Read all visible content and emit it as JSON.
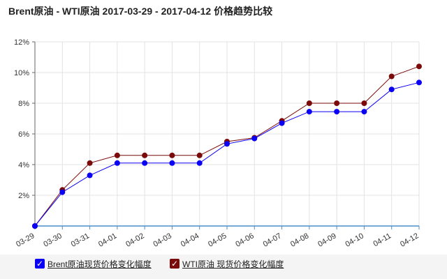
{
  "title": "Brent原油 - WTI原油 2017-03-29 - 2017-04-12 价格趋势比较",
  "chart_data": {
    "type": "line",
    "categories": [
      "03-29",
      "03-30",
      "03-31",
      "04-01",
      "04-02",
      "04-03",
      "04-04",
      "04-05",
      "04-06",
      "04-07",
      "04-08",
      "04-09",
      "04-10",
      "04-11",
      "04-12"
    ],
    "y_ticks": [
      "2%",
      "4%",
      "6%",
      "8%",
      "10%",
      "12%"
    ],
    "ylim": [
      0,
      12
    ],
    "grid": true,
    "legend_position": "bottom-left",
    "series": [
      {
        "name": "Brent原油现货价格变化幅度",
        "color": "#0a00f5",
        "values": [
          0,
          2.2,
          3.3,
          4.1,
          4.1,
          4.1,
          4.1,
          5.35,
          5.7,
          6.7,
          7.45,
          7.45,
          7.45,
          8.9,
          9.35
        ]
      },
      {
        "name": "WTI原油 现货价格变化幅度",
        "color": "#7b0a0a",
        "values": [
          0,
          2.35,
          4.1,
          4.6,
          4.6,
          4.6,
          4.6,
          5.5,
          5.75,
          6.85,
          8.0,
          8.0,
          8.0,
          9.75,
          10.4
        ]
      }
    ]
  }
}
